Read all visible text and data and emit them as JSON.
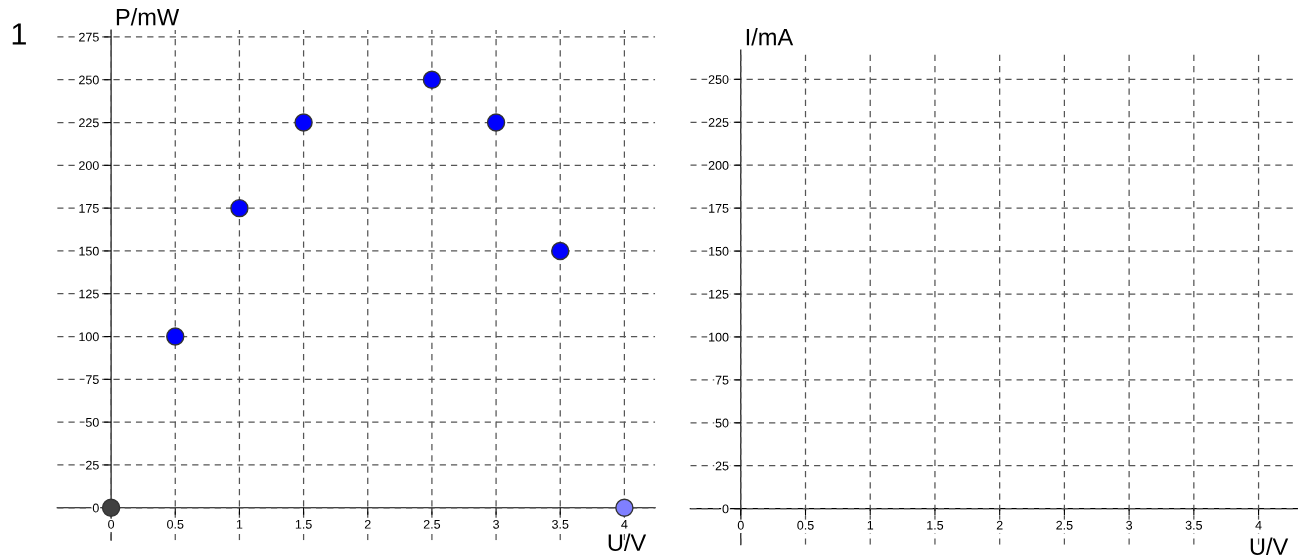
{
  "chart_data": [
    {
      "type": "scatter",
      "ylabel": "P/mW",
      "xlabel": "U/V",
      "annotations": [
        "1"
      ],
      "series": [
        {
          "color": "#0000ff",
          "x": [
            0.5,
            1,
            1.5,
            2.5,
            3,
            3.5
          ],
          "values": [
            100,
            175,
            225,
            250,
            225,
            150
          ]
        },
        {
          "color": "#404040",
          "x": [
            0
          ],
          "values": [
            0
          ]
        },
        {
          "color": "#7f7fff",
          "x": [
            4
          ],
          "values": [
            0
          ]
        }
      ],
      "xlim": [
        -0.42,
        4.24
      ],
      "ylim": [
        -19,
        279
      ],
      "xticks": [
        0,
        0.5,
        1,
        1.5,
        2,
        2.5,
        3,
        3.5,
        4
      ],
      "yticks": [
        0,
        25,
        50,
        75,
        100,
        125,
        150,
        175,
        200,
        225,
        250,
        275
      ],
      "grid": true,
      "marker": "circle"
    },
    {
      "type": "scatter",
      "ylabel": "I/mA",
      "xlabel": "U/V",
      "xlim": [
        -0.39,
        4.3
      ],
      "ylim": [
        -21,
        267
      ],
      "xticks": [
        0,
        0.5,
        1,
        1.5,
        2,
        2.5,
        3,
        3.5,
        4
      ],
      "yticks": [
        0,
        25,
        50,
        75,
        100,
        125,
        150,
        175,
        200,
        225,
        250
      ],
      "grid": true
    }
  ]
}
